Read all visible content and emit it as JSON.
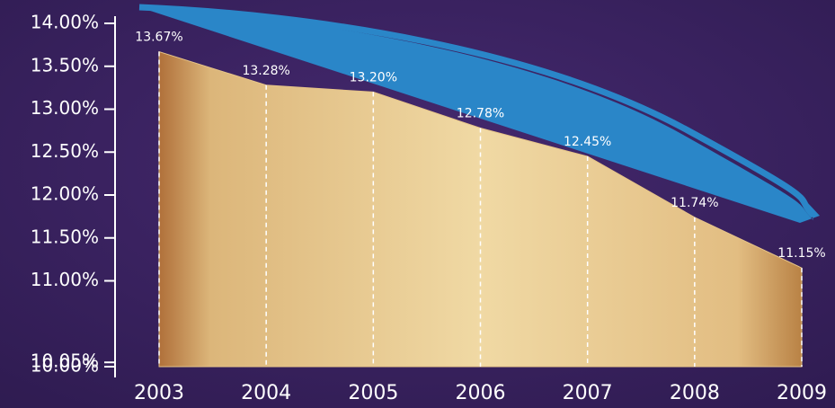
{
  "chart_data": {
    "type": "area",
    "categories": [
      "2003",
      "2004",
      "2005",
      "2006",
      "2007",
      "2008",
      "2009"
    ],
    "values": [
      13.67,
      13.28,
      13.2,
      12.78,
      12.45,
      11.74,
      11.15
    ],
    "value_labels": [
      "13.67%",
      "13.28%",
      "13.20%",
      "12.78%",
      "12.45%",
      "11.74%",
      "11.15%"
    ],
    "color": "#e6c488",
    "ylim": [
      10,
      14
    ],
    "yticks": [
      {
        "value": 10,
        "label": "10.00%"
      },
      {
        "value": 10.05,
        "label": "10.05%"
      },
      {
        "value": 11,
        "label": "11.00%"
      },
      {
        "value": 11.5,
        "label": "11.50%"
      },
      {
        "value": 12,
        "label": "12.00%"
      },
      {
        "value": 12.5,
        "label": "12.50%"
      },
      {
        "value": 13,
        "label": "13.00%"
      },
      {
        "value": 13.5,
        "label": "13.50%"
      },
      {
        "value": 14,
        "label": "14.00%"
      }
    ]
  }
}
